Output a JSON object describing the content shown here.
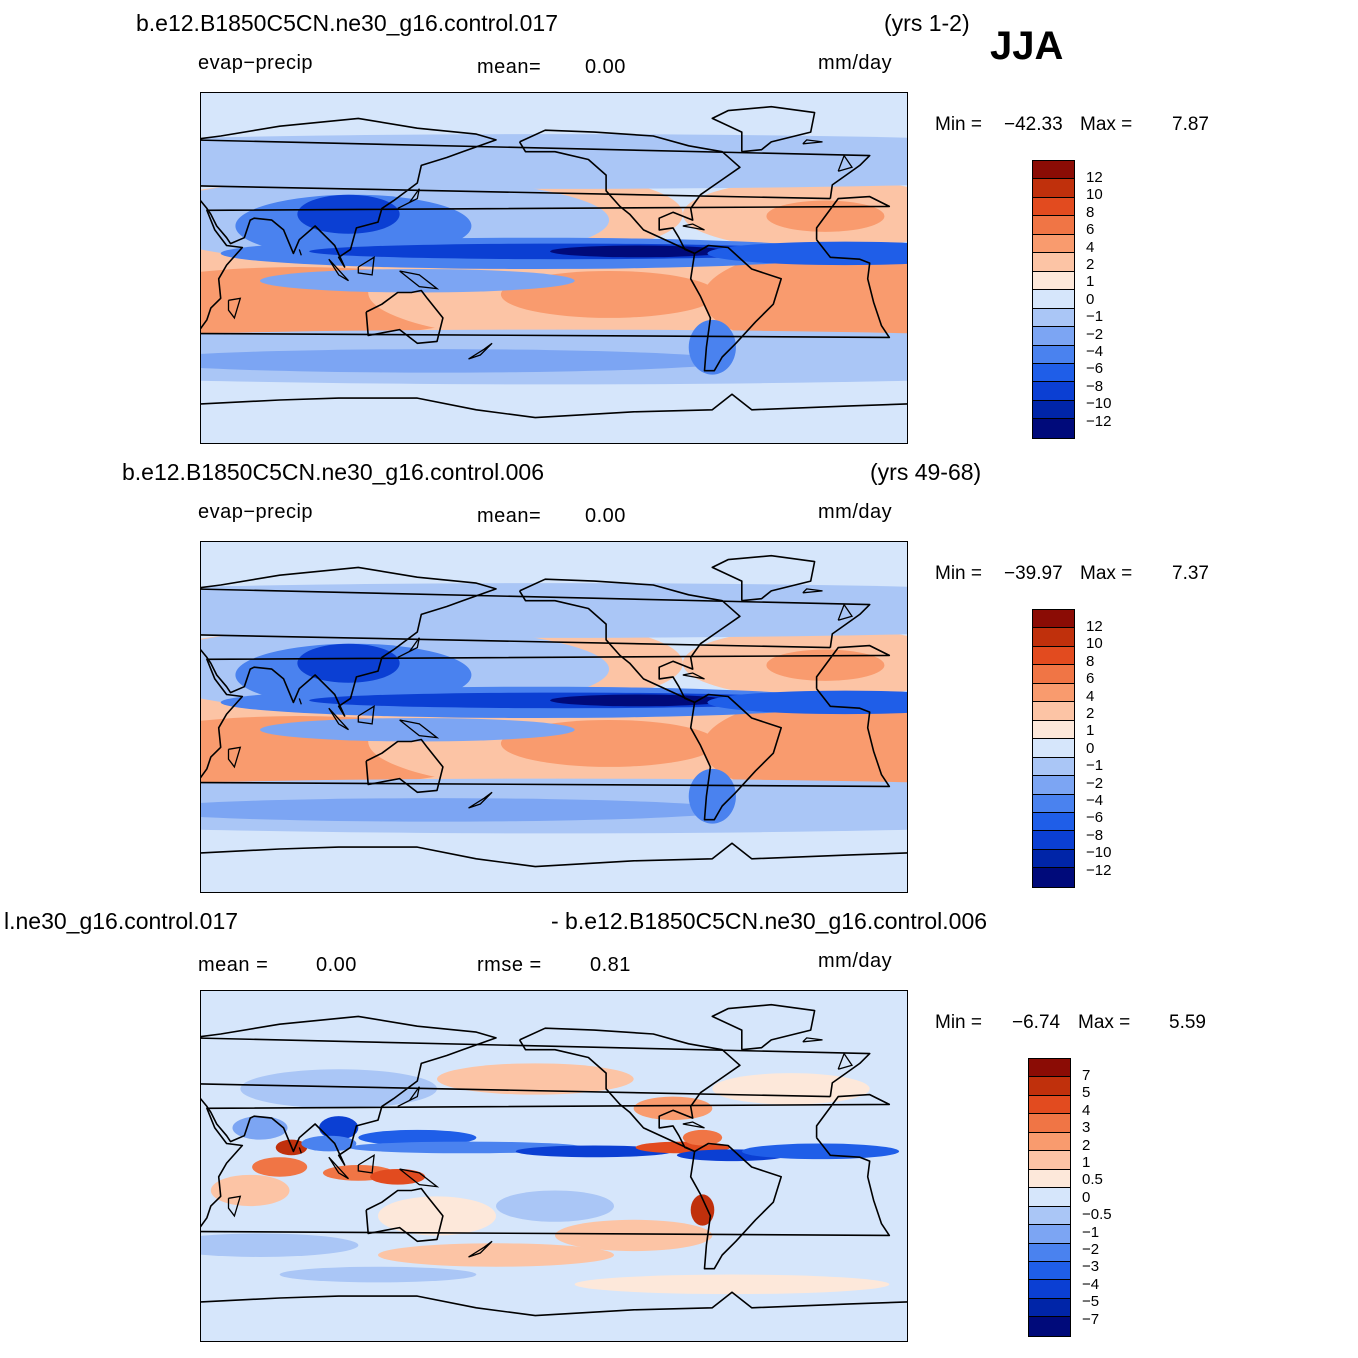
{
  "season": "JJA",
  "colors": {
    "scale": [
      "#000a7a",
      "#0025a8",
      "#0b3fd3",
      "#1f5ee8",
      "#4a82ef",
      "#7ca5f3",
      "#aac6f6",
      "#d6e6fb",
      "#fde8da",
      "#fcc4a5",
      "#f99b6e",
      "#f07545",
      "#e24b1f",
      "#c0300c",
      "#8b0c05"
    ],
    "ocean_bg": "#d6e6fb",
    "coast": "#000000"
  },
  "panels": [
    {
      "id": "p1",
      "case": "b.e12.B1850C5CN.ne30_g16.control.017",
      "years": "(yrs 1-2)",
      "variable": "evap−precip",
      "mean_label": "mean=",
      "mean_value": "0.00",
      "units": "mm/day",
      "min_label": "Min  =",
      "min_value": "−42.33",
      "max_label": "Max  =",
      "max_value": "7.87",
      "colorbar_labels": [
        "12",
        "10",
        "8",
        "6",
        "4",
        "2",
        "1",
        "0",
        "−1",
        "−2",
        "−4",
        "−6",
        "−8",
        "−10",
        "−12"
      ],
      "pattern": "model"
    },
    {
      "id": "p2",
      "case": "b.e12.B1850C5CN.ne30_g16.control.006",
      "years": "(yrs 49-68)",
      "variable": "evap−precip",
      "mean_label": "mean=",
      "mean_value": "0.00",
      "units": "mm/day",
      "min_label": "Min  =",
      "min_value": "−39.97",
      "max_label": "Max  =",
      "max_value": "7.37",
      "colorbar_labels": [
        "12",
        "10",
        "8",
        "6",
        "4",
        "2",
        "1",
        "0",
        "−1",
        "−2",
        "−4",
        "−6",
        "−8",
        "−10",
        "−12"
      ],
      "pattern": "model"
    },
    {
      "id": "p3",
      "case": "l.ne30_g16.control.017",
      "case_right": "- b.e12.B1850C5CN.ne30_g16.control.006",
      "mean_label": "mean  =",
      "mean_value": "0.00",
      "rmse_label": "rmse  =",
      "rmse_value": "0.81",
      "units": "mm/day",
      "min_label": "Min  =",
      "min_value": "−6.74",
      "max_label": "Max  =",
      "max_value": "5.59",
      "colorbar_labels": [
        "7",
        "5",
        "4",
        "3",
        "2",
        "1",
        "0.5",
        "0",
        "−0.5",
        "−1",
        "−2",
        "−3",
        "−4",
        "−5",
        "−7"
      ],
      "pattern": "diff"
    }
  ]
}
